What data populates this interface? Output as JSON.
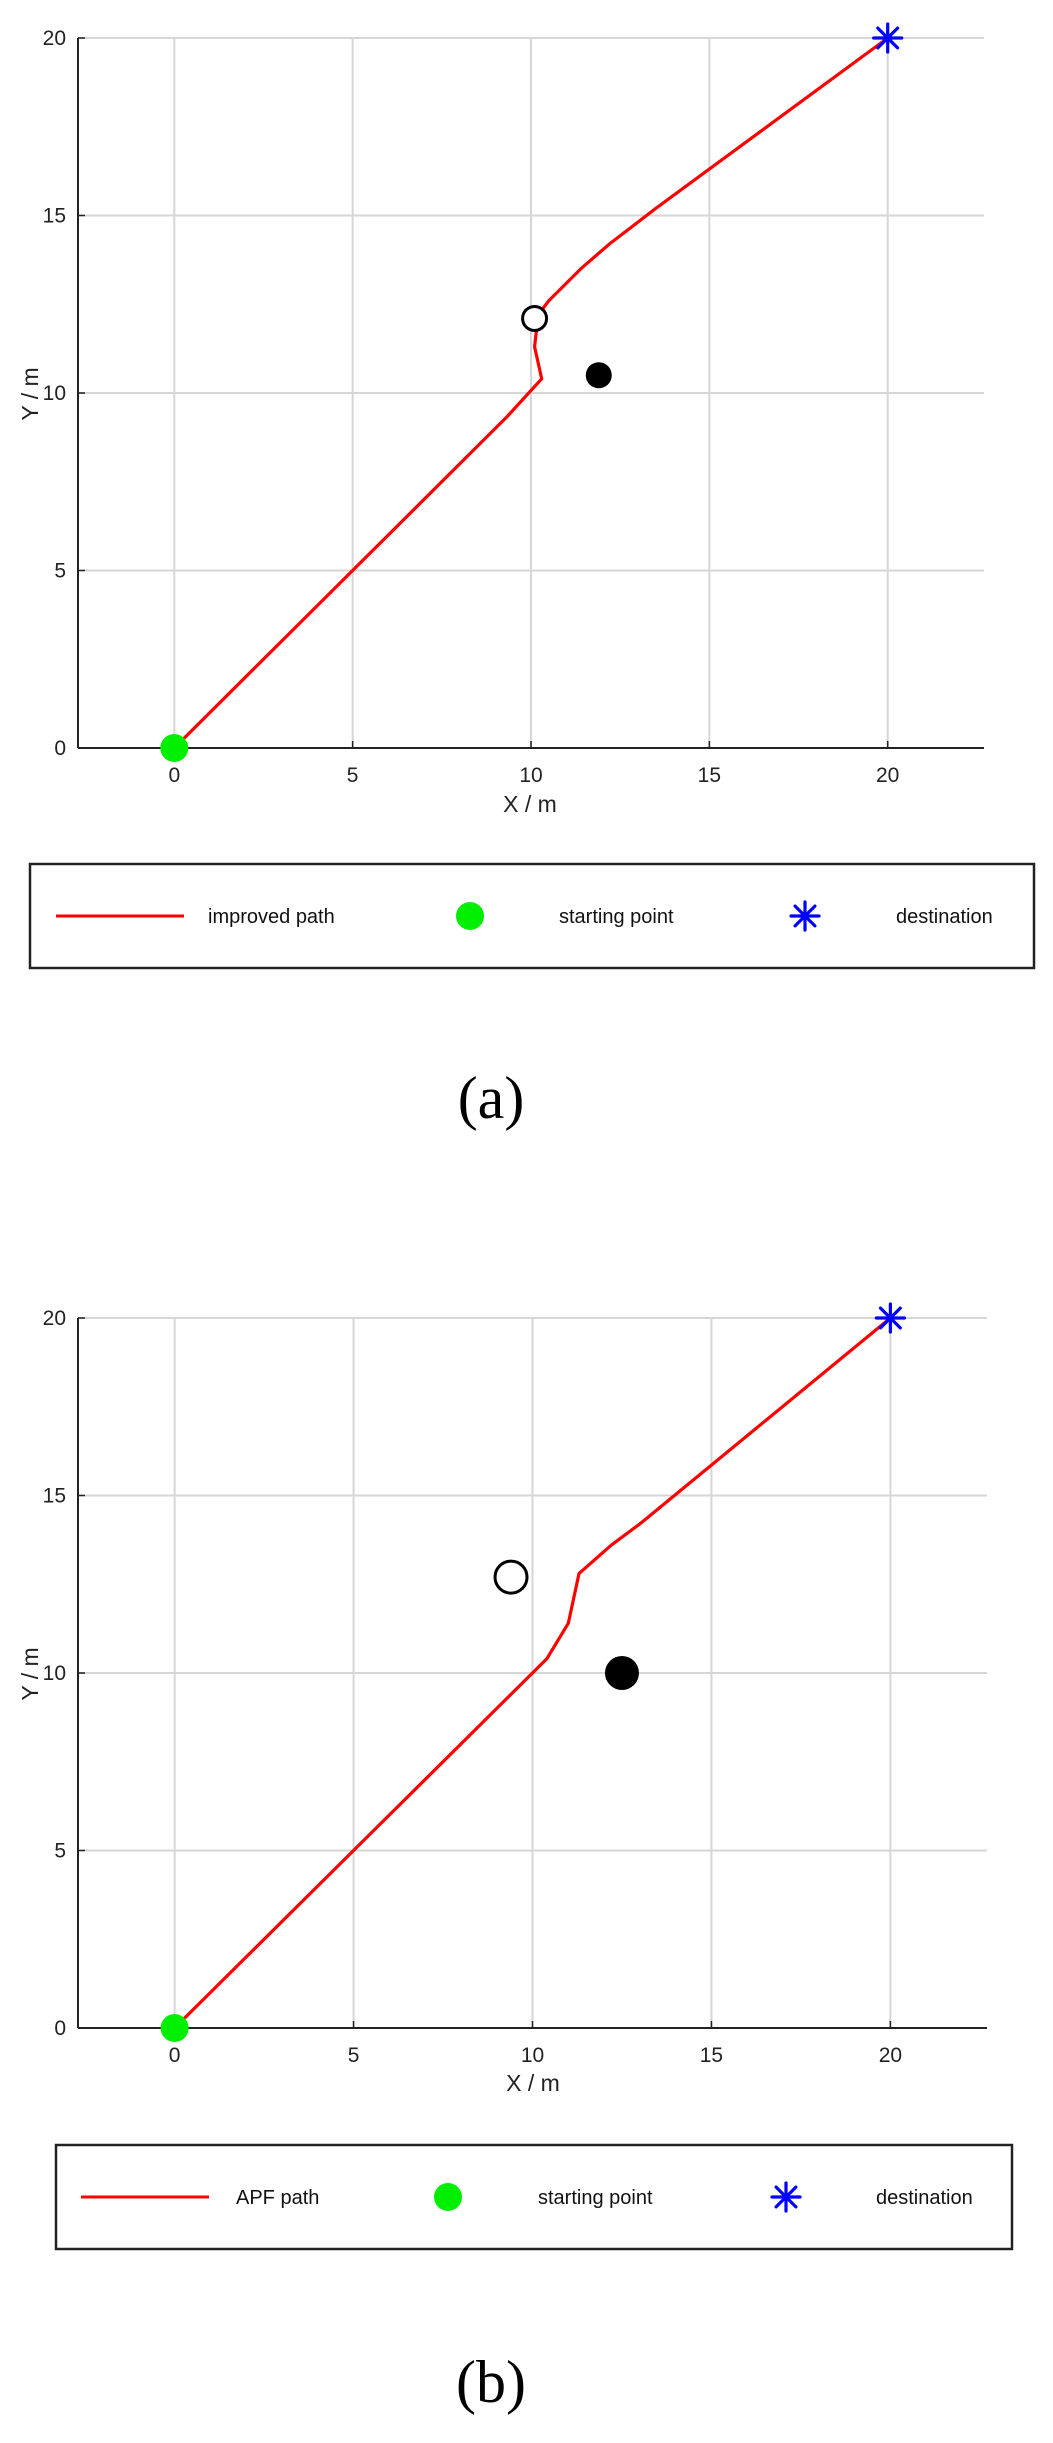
{
  "chart_data": [
    {
      "panel": "a",
      "type": "line",
      "xlabel": "X / m",
      "ylabel": "Y / m",
      "xlim": [
        -2.7,
        22.7
      ],
      "ylim": [
        0,
        20
      ],
      "xticks": [
        0,
        5,
        10,
        15,
        20
      ],
      "yticks": [
        0,
        5,
        10,
        15,
        20
      ],
      "grid": true,
      "series": [
        {
          "name": "improved path",
          "color": "#ff0000",
          "x": [
            0,
            9.3,
            10.3,
            10.1,
            10.2,
            10.5,
            11.4,
            12.2,
            13.5,
            20
          ],
          "y": [
            0,
            9.3,
            10.4,
            11.3,
            12.2,
            12.6,
            13.5,
            14.2,
            15.2,
            20
          ]
        }
      ],
      "markers": {
        "start": {
          "x": 0,
          "y": 0,
          "color": "#00ee00"
        },
        "destination": {
          "x": 20,
          "y": 20,
          "color": "#0000ff"
        },
        "obstacle_open": {
          "x": 10.1,
          "y": 12.1
        },
        "obstacle_filled": {
          "x": 11.9,
          "y": 10.5
        }
      },
      "legend": {
        "placement": "bottom",
        "entries": [
          "improved path",
          "starting point",
          "destination"
        ]
      },
      "panel_label": "(a)"
    },
    {
      "panel": "b",
      "type": "line",
      "xlabel": "X / m",
      "ylabel": "Y / m",
      "xlim": [
        -2.7,
        22.7
      ],
      "ylim": [
        0,
        20
      ],
      "xticks": [
        0,
        5,
        10,
        15,
        20
      ],
      "yticks": [
        0,
        5,
        10,
        15,
        20
      ],
      "grid": true,
      "series": [
        {
          "name": "APF path",
          "color": "#ff0000",
          "x": [
            0,
            10.4,
            11.0,
            11.3,
            12.2,
            13.0,
            20
          ],
          "y": [
            0,
            10.4,
            11.4,
            12.8,
            13.6,
            14.2,
            20
          ]
        }
      ],
      "markers": {
        "start": {
          "x": 0,
          "y": 0,
          "color": "#00ee00"
        },
        "destination": {
          "x": 20,
          "y": 20,
          "color": "#0000ff"
        },
        "obstacle_open": {
          "x": 9.4,
          "y": 12.7
        },
        "obstacle_filled": {
          "x": 12.5,
          "y": 10.0
        }
      },
      "legend": {
        "placement": "bottom",
        "entries": [
          "APF path",
          "starting point",
          "destination"
        ]
      },
      "panel_label": "(b)"
    }
  ]
}
